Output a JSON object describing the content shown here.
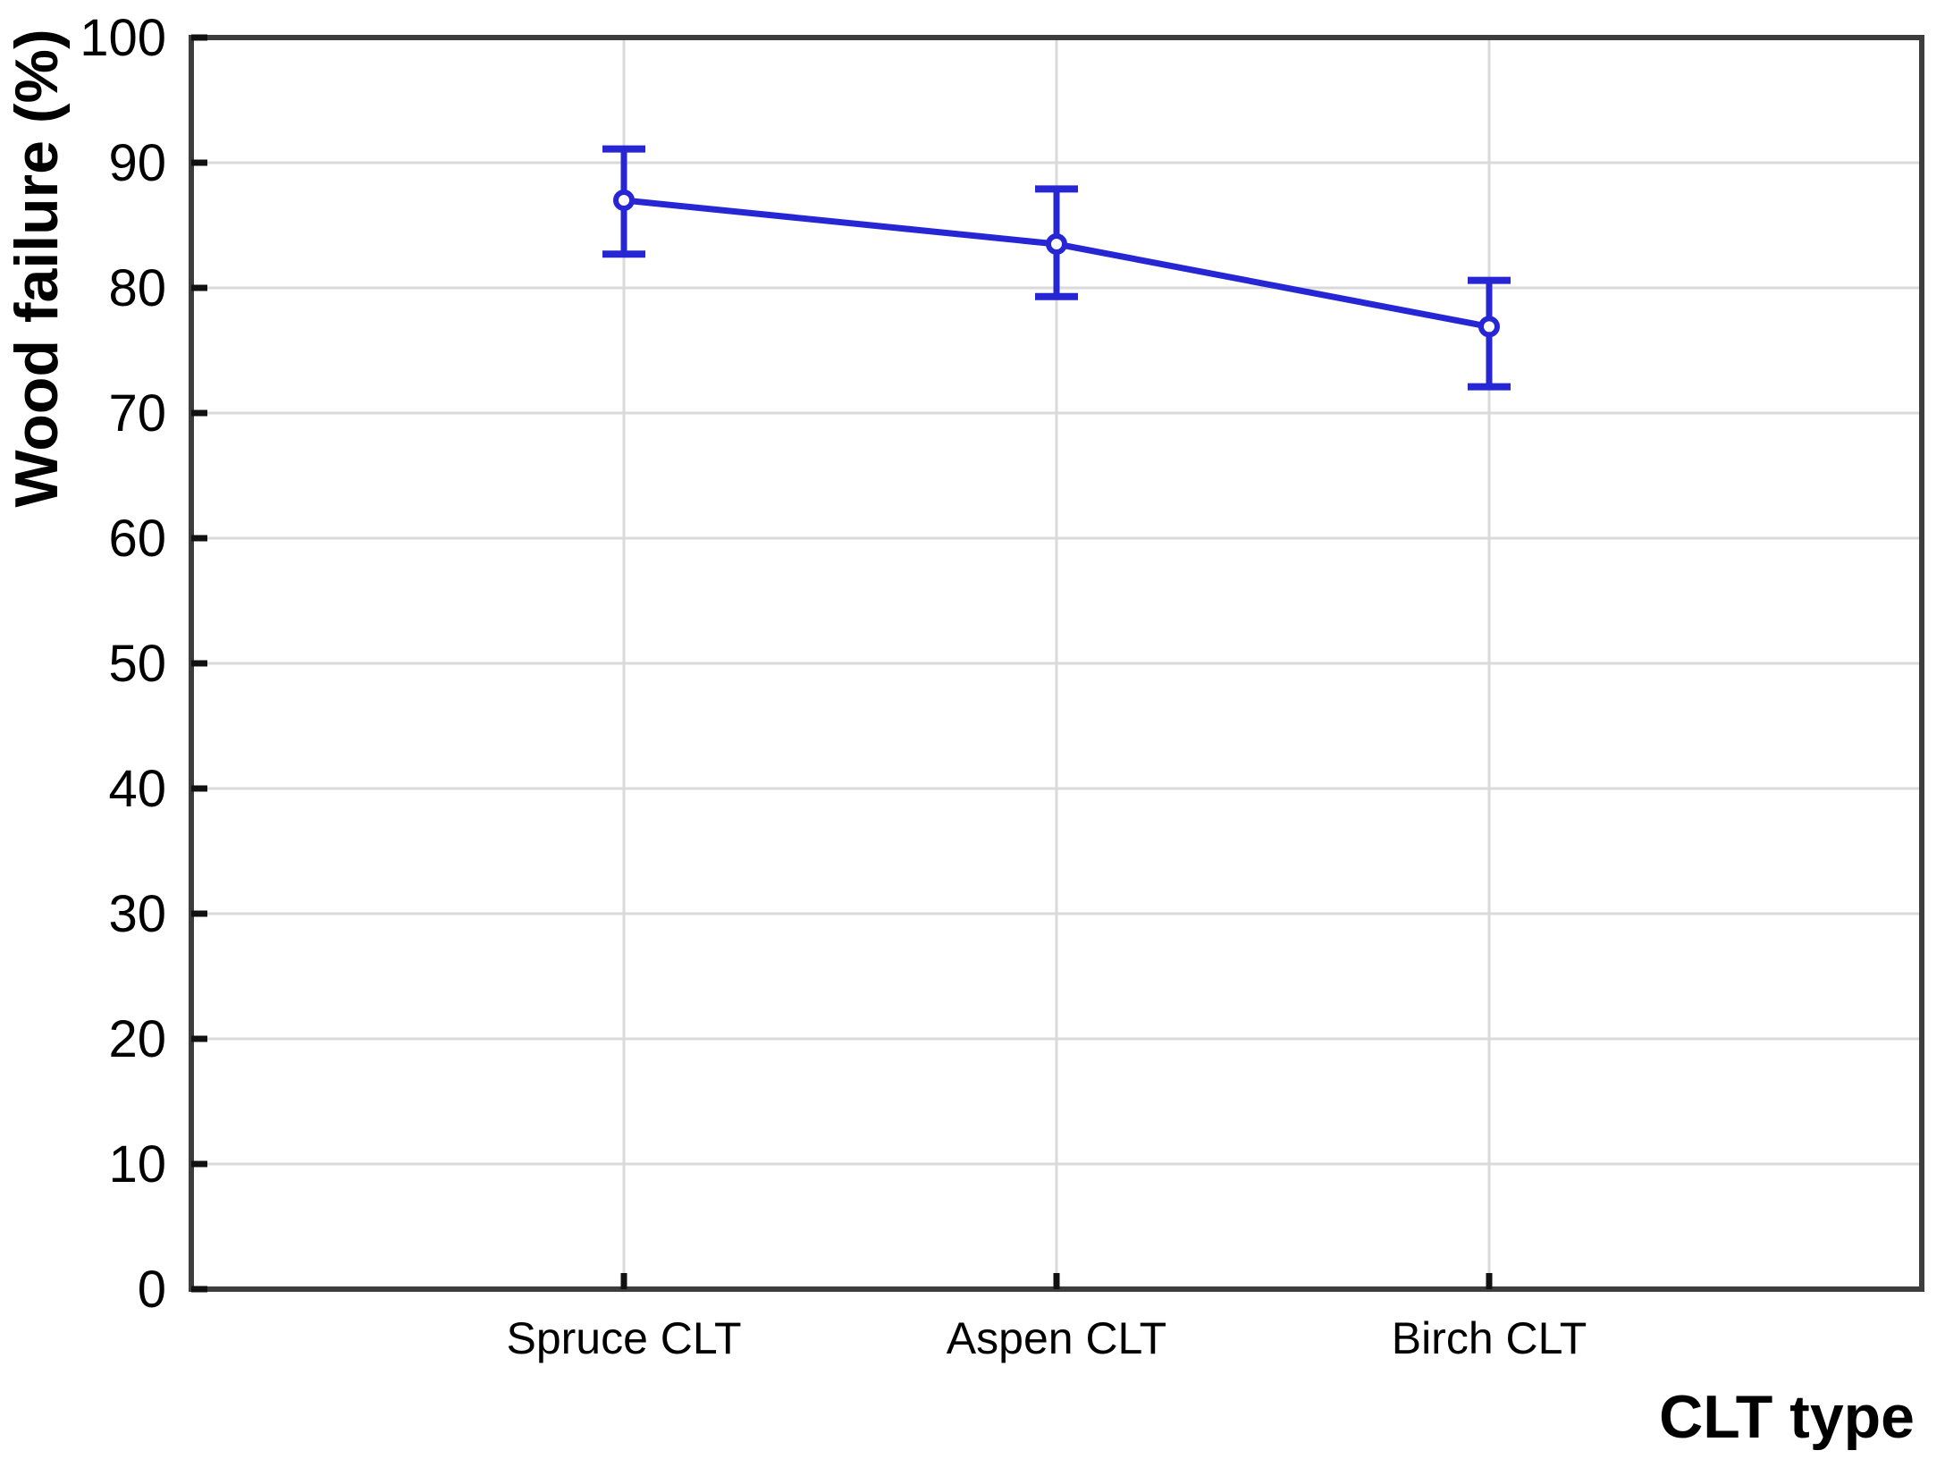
{
  "figure": {
    "background": "#ffffff"
  },
  "chart_data": {
    "type": "line",
    "title": "",
    "xlabel": "CLT type",
    "ylabel": "Wood failure (%)",
    "categories": [
      "Spruce CLT",
      "Aspen CLT",
      "Birch CLT"
    ],
    "series": [
      {
        "name": "Wood failure",
        "values": [
          87.0,
          83.5,
          76.9
        ],
        "error_low": [
          82.7,
          79.3,
          72.1
        ],
        "error_high": [
          91.1,
          87.9,
          80.6
        ]
      }
    ],
    "ylim": [
      0,
      100
    ],
    "yticks": [
      0,
      10,
      20,
      30,
      40,
      50,
      60,
      70,
      80,
      90,
      100
    ],
    "ytick_labels": [
      "0",
      "10",
      "20",
      "30",
      "40",
      "50",
      "60",
      "70",
      "80",
      "90",
      "100"
    ],
    "grid": true,
    "grid_lines": "horizontal-and-vertical-category",
    "legend_position": "none",
    "marker": "open-circle",
    "error_bars": "whisker-with-caps",
    "colors": {
      "line": "#2626d4",
      "marker_fill": "#ffffff",
      "frame": "#3d3d3d",
      "grid": "#dadada",
      "tick": "#111111",
      "text": "#000000",
      "background": "#ffffff"
    }
  }
}
